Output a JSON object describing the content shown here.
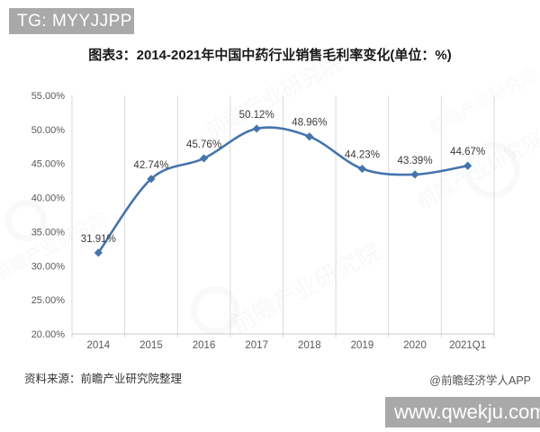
{
  "top_banner": {
    "text": "TG: MYYJJPP"
  },
  "title": "图表3：2014-2021年中国中药行业销售毛利率变化(单位：%)",
  "chart_data": {
    "type": "line",
    "title": "图表3：2014-2021年中国中药行业销售毛利率变化(单位：%)",
    "categories": [
      "2014",
      "2015",
      "2016",
      "2017",
      "2018",
      "2019",
      "2020",
      "2021Q1"
    ],
    "values": [
      31.91,
      42.74,
      45.76,
      50.12,
      48.96,
      44.23,
      43.39,
      44.67
    ],
    "point_labels": [
      "31.91%",
      "42.74%",
      "45.76%",
      "50.12%",
      "48.96%",
      "44.23%",
      "43.39%",
      "44.67%"
    ],
    "ylim": [
      20,
      55
    ],
    "ytick_labels": [
      "20.00%",
      "25.00%",
      "30.00%",
      "35.00%",
      "40.00%",
      "45.00%",
      "50.00%",
      "55.00%"
    ],
    "grid": "vertical",
    "legend": "none",
    "smooth": true,
    "marker": "diamond",
    "colors": {
      "line": "#4474ad",
      "gridline": "#d9d9d9",
      "axis_line": "#c8c8c8",
      "tick_text": "#595959",
      "point_label_text": "#3a3a3a"
    }
  },
  "footer": {
    "source": "资料来源：前瞻产业研究院整理",
    "credit": "@前瞻经济学人APP"
  },
  "bottom_banner": {
    "text": "www.qwekju.com"
  },
  "watermark": {
    "text": "前瞻产业研究院"
  }
}
